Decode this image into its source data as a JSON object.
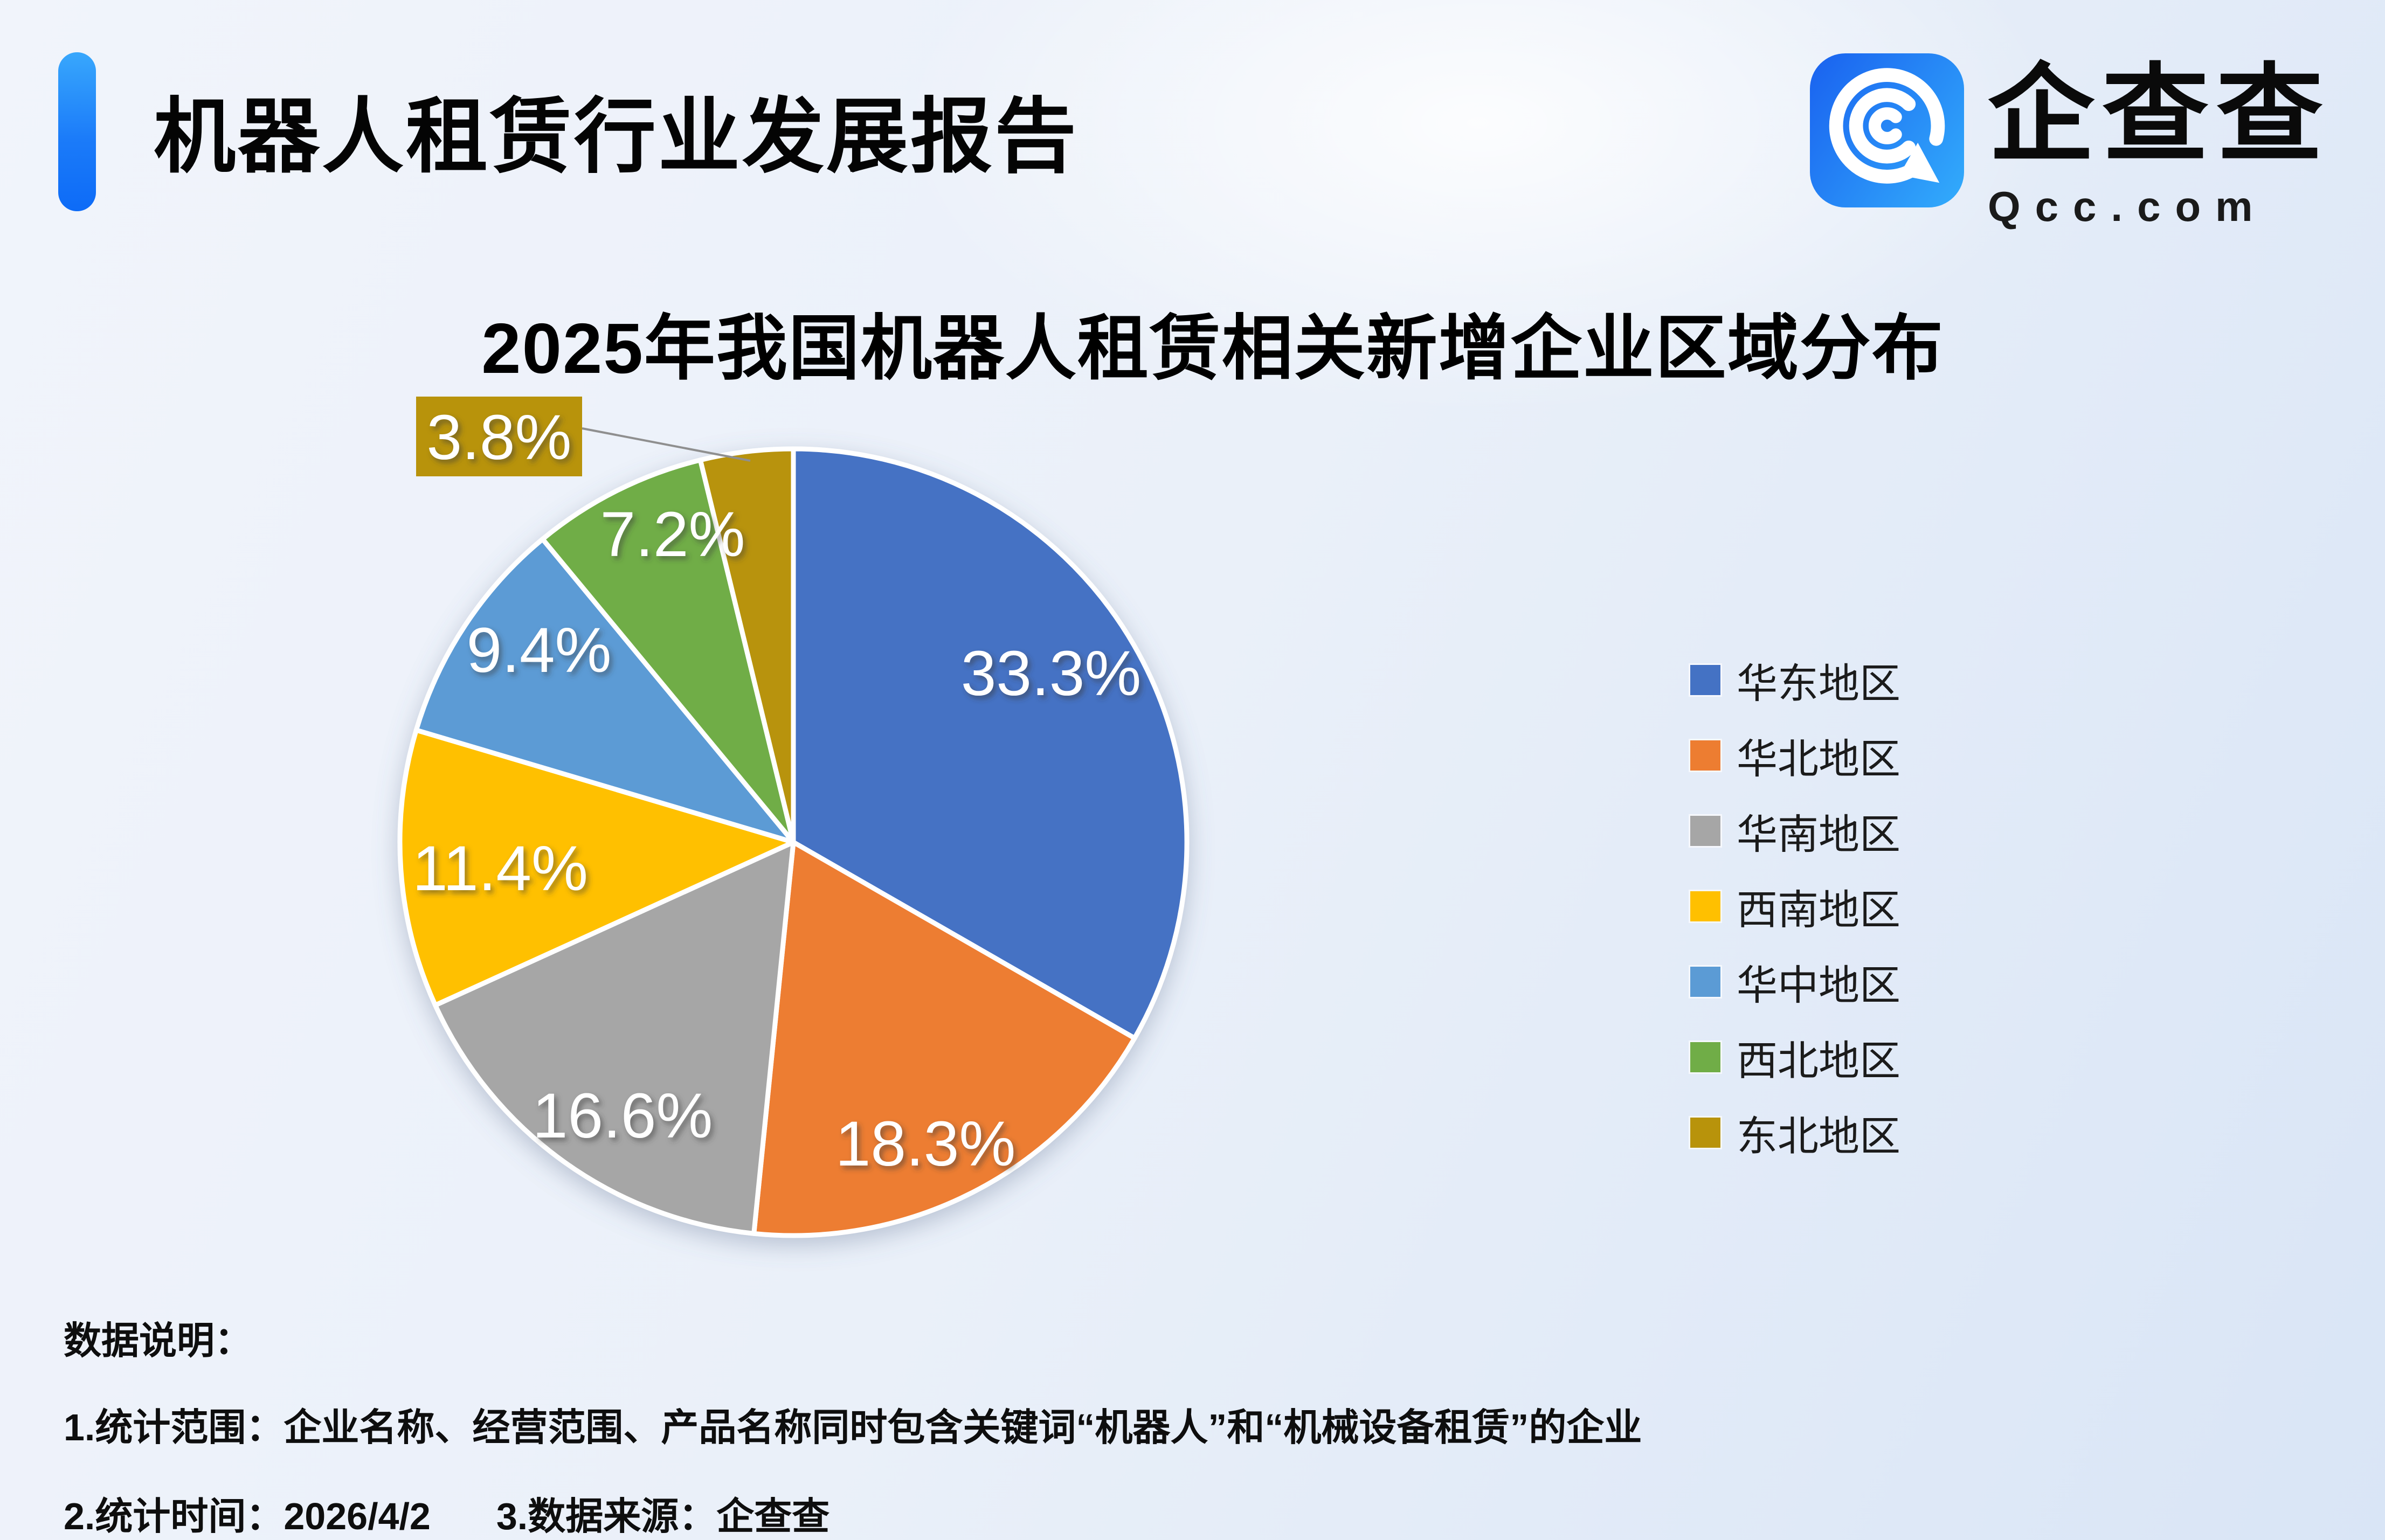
{
  "header": {
    "title": "机器人租赁行业发展报告"
  },
  "logo": {
    "name": "企查查",
    "domain": "Qcc.com"
  },
  "chart_data": {
    "type": "pie",
    "title": "2025年我国机器人租赁相关新增企业区域分布",
    "categories": [
      "华东地区",
      "华北地区",
      "华南地区",
      "西南地区",
      "华中地区",
      "西北地区",
      "东北地区"
    ],
    "values": [
      33.3,
      18.3,
      16.6,
      11.4,
      9.4,
      7.2,
      3.8
    ],
    "labels": [
      "33.3%",
      "18.3%",
      "16.6%",
      "11.4%",
      "9.4%",
      "7.2%",
      "3.8%"
    ],
    "unit": "%",
    "colors": [
      "#4472C4",
      "#ED7D31",
      "#A6A6A6",
      "#FFC000",
      "#5B9BD5",
      "#70AD47",
      "#B8930B"
    ],
    "legend_position": "right",
    "start_angle_deg": 0,
    "direction": "clockwise",
    "callout_slice": "东北地区"
  },
  "footer": {
    "heading": "数据说明：",
    "note1": "1.统计范围：企业名称、经营范围、产品名称同时包含关键词“机器人”和“机械设备租赁”的企业",
    "note2": "2.统计时间：2026/4/2",
    "note3": "3.数据来源：企查查"
  }
}
